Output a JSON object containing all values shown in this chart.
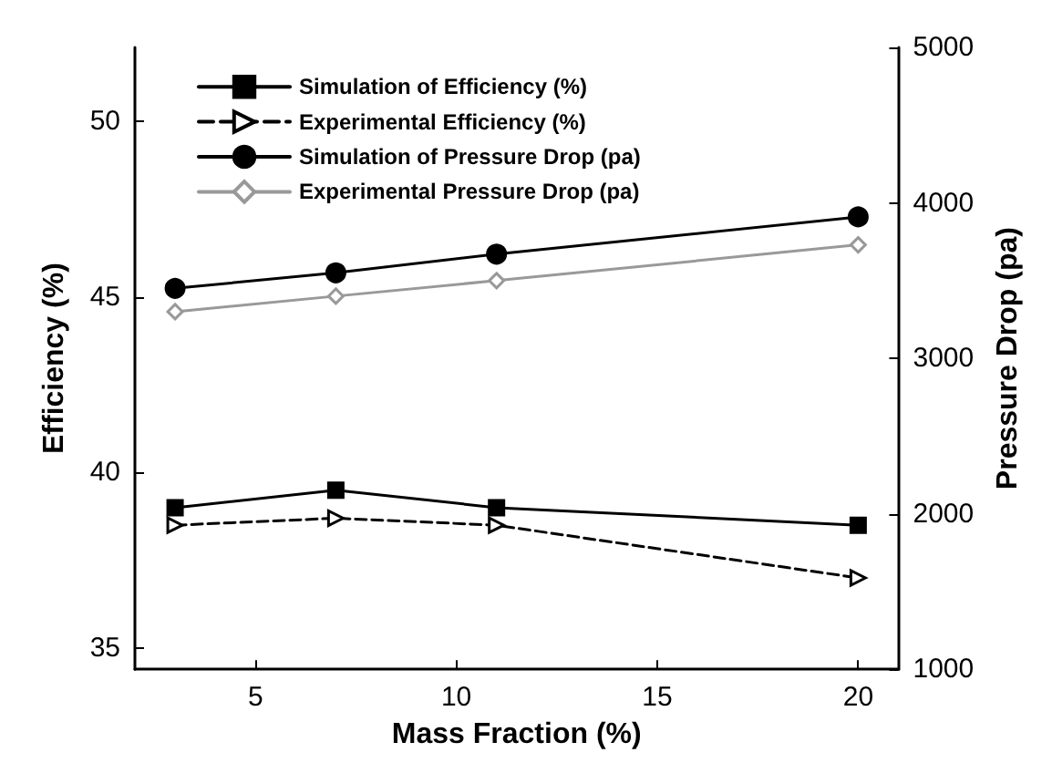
{
  "chart_data": {
    "type": "line",
    "xlabel": "Mass Fraction (%)",
    "ylabel": "Efficiency (%)",
    "y2label": "Pressure Drop (pa)",
    "x": [
      3,
      7,
      11,
      20
    ],
    "xlim": [
      2,
      21
    ],
    "xticks": [
      5,
      10,
      15,
      20
    ],
    "ylim": [
      34.4,
      52.1
    ],
    "yticks": [
      35,
      40,
      45,
      50
    ],
    "y2lim": [
      1000,
      5000
    ],
    "y2ticks": [
      1000,
      2000,
      3000,
      4000,
      5000
    ],
    "grid": false,
    "legend": "top left",
    "series": [
      {
        "name": "Simulation of Efficiency (%)",
        "color": "#000000",
        "values": [
          39.0,
          39.5,
          39.0,
          38.5
        ],
        "marker": "square",
        "line_style": "solid"
      },
      {
        "name": "Experimental Efficiency (%)",
        "color": "#000000",
        "values": [
          38.5,
          38.7,
          38.5,
          37.0
        ],
        "marker": "triangle",
        "line_style": "dashed"
      },
      {
        "name": "Simulation of Pressure Drop (pa)",
        "color": "#000000",
        "values": [
          3450,
          3550,
          3670,
          3910
        ],
        "marker": "circle",
        "line_style": "solid",
        "axis": "y2"
      },
      {
        "name": "Experimental Pressure Drop (pa)",
        "color": "#999999",
        "values": [
          3300,
          3400,
          3500,
          3730
        ],
        "marker": "diamond",
        "line_style": "solid",
        "axis": "y2"
      }
    ]
  }
}
